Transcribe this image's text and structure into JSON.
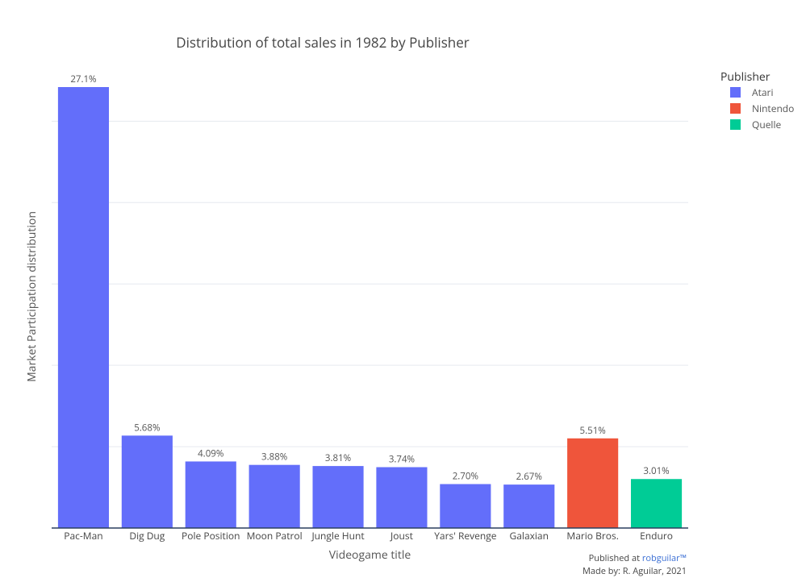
{
  "chart_data": {
    "type": "bar",
    "title": "Distribution of total sales in 1982 by Publisher",
    "xlabel": "Videogame title",
    "ylabel": "Market Participation distribution",
    "ylim": [
      0,
      27.1
    ],
    "grid": true,
    "legend_position": "top-right",
    "legend_title": "Publisher",
    "legend": [
      {
        "name": "Atari",
        "color": "#636efa"
      },
      {
        "name": "Nintendo",
        "color": "#ef553b"
      },
      {
        "name": "Quelle",
        "color": "#00cc96"
      }
    ],
    "categories": [
      "Pac-Man",
      "Dig Dug",
      "Pole Position",
      "Moon Patrol",
      "Jungle Hunt",
      "Joust",
      "Yars' Revenge",
      "Galaxian",
      "Mario Bros.",
      "Enduro"
    ],
    "values": [
      27.1,
      5.68,
      4.09,
      3.88,
      3.81,
      3.74,
      2.7,
      2.67,
      5.51,
      3.01
    ],
    "labels": [
      "27.1%",
      "5.68%",
      "4.09%",
      "3.88%",
      "3.81%",
      "3.74%",
      "2.70%",
      "2.67%",
      "5.51%",
      "3.01%"
    ],
    "publishers": [
      "Atari",
      "Atari",
      "Atari",
      "Atari",
      "Atari",
      "Atari",
      "Atari",
      "Atari",
      "Nintendo",
      "Quelle"
    ]
  },
  "credits": {
    "published_prefix": "Published at ",
    "published_link": "robguilar™",
    "made_by": "Made by: R. Aguilar, 2021"
  }
}
